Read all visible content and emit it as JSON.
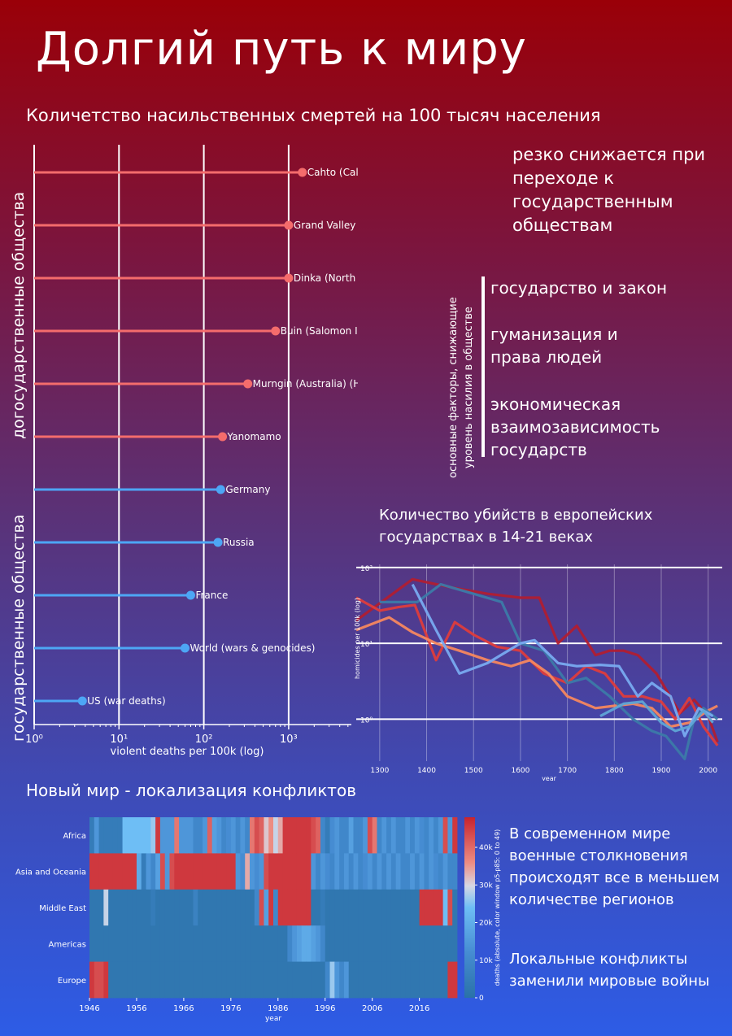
{
  "title": "Долгий путь к миру",
  "section1": {
    "heading": "Количетство насильственных смертей на 100 тысяч населения",
    "label_prestate": "догосударственные общества",
    "label_state": "государственные общества",
    "note": "резко снижается при переходе к государственным обществам"
  },
  "factors": {
    "caption_line1": "основные факторы, снижающие",
    "caption_line2": "уровень насилия в обществе",
    "item1": "государство и закон",
    "item2": "гуманизация и права людей",
    "item3": "экономическая взаимозависимость государств"
  },
  "section2": {
    "heading": "Количество убийств в европейских государствах в 14-21 веках"
  },
  "section3": {
    "heading": "Новый мир - локализация конфликтов",
    "note1": "В современном мире военные столкновения происходят все в меньшем количестве регионов",
    "note2": "Локальные конфликты заменили мировые войны"
  },
  "colors": {
    "prestate": "#f46c6c",
    "state": "#4da6f5"
  },
  "chart_data": [
    {
      "type": "lollipop",
      "xlabel": "violent deaths per 100k (log)",
      "xscale": "log",
      "xlim": [
        0.9,
        5000
      ],
      "xticks": [
        1,
        10,
        100,
        1000
      ],
      "xtick_labels": [
        "10⁰",
        "10¹",
        "10²",
        "10³"
      ],
      "rows": [
        {
          "label": "Cahto (California)",
          "value": 1450,
          "group": "prestate"
        },
        {
          "label": "Grand Valley Dani (New Guinea)",
          "value": 1000,
          "group": "prestate"
        },
        {
          "label": "Dinka (North East Africa)",
          "value": 1000,
          "group": "prestate"
        },
        {
          "label": "Buin (Salomon Islands)",
          "value": 700,
          "group": "prestate"
        },
        {
          "label": "Murngin (Australia) (Hunter-Gatherer)",
          "value": 330,
          "group": "prestate"
        },
        {
          "label": "Yanomamo",
          "value": 166,
          "group": "prestate"
        },
        {
          "label": "Germany",
          "value": 158,
          "group": "state"
        },
        {
          "label": "Russia",
          "value": 147,
          "group": "state"
        },
        {
          "label": "France",
          "value": 70,
          "group": "state"
        },
        {
          "label": "World (wars & genocides)",
          "value": 60,
          "group": "state"
        },
        {
          "label": "US (war deaths)",
          "value": 3.7,
          "group": "state"
        }
      ]
    },
    {
      "type": "line",
      "xlabel": "year",
      "ylabel": "homicides per 100k (log)",
      "yscale": "log",
      "xlim": [
        1250,
        2030
      ],
      "ylim": [
        0.28,
        110
      ],
      "xticks": [
        1300,
        1400,
        1500,
        1600,
        1700,
        1800,
        1900,
        2000
      ],
      "yticks": [
        1,
        10,
        100
      ],
      "ytick_labels": [
        "10⁰",
        "10¹",
        "10²"
      ],
      "series": [
        {
          "color": "#b01e32",
          "points": [
            [
              1250,
              20
            ],
            [
              1370,
              70
            ],
            [
              1450,
              55
            ],
            [
              1530,
              45
            ],
            [
              1600,
              40
            ],
            [
              1640,
              40
            ],
            [
              1680,
              10
            ],
            [
              1720,
              17
            ],
            [
              1760,
              7
            ],
            [
              1790,
              8
            ],
            [
              1820,
              8
            ],
            [
              1850,
              7
            ],
            [
              1890,
              4
            ],
            [
              1940,
              1.2
            ],
            [
              1970,
              1.8
            ],
            [
              2000,
              1.1
            ],
            [
              2020,
              0.5
            ]
          ]
        },
        {
          "color": "#de3c3c",
          "points": [
            [
              1250,
              40
            ],
            [
              1300,
              27
            ],
            [
              1340,
              30
            ],
            [
              1375,
              32
            ],
            [
              1420,
              6
            ],
            [
              1460,
              19
            ],
            [
              1500,
              13
            ],
            [
              1550,
              9
            ],
            [
              1600,
              8
            ],
            [
              1650,
              4
            ],
            [
              1700,
              3
            ],
            [
              1740,
              5
            ],
            [
              1780,
              4
            ],
            [
              1820,
              2
            ],
            [
              1860,
              2
            ],
            [
              1900,
              1.7
            ],
            [
              1930,
              1
            ],
            [
              1960,
              1.9
            ],
            [
              1990,
              0.8
            ],
            [
              2020,
              0.45
            ]
          ]
        },
        {
          "color": "#f5875f",
          "points": [
            [
              1250,
              15
            ],
            [
              1320,
              22
            ],
            [
              1370,
              14
            ],
            [
              1420,
              10
            ],
            [
              1470,
              8
            ],
            [
              1530,
              6
            ],
            [
              1580,
              5
            ],
            [
              1620,
              6
            ],
            [
              1660,
              4
            ],
            [
              1700,
              2
            ],
            [
              1760,
              1.4
            ],
            [
              1800,
              1.5
            ],
            [
              1840,
              1.6
            ],
            [
              1880,
              1.4
            ],
            [
              1920,
              0.8
            ],
            [
              1960,
              0.9
            ],
            [
              2000,
              1.3
            ],
            [
              2020,
              1.5
            ]
          ]
        },
        {
          "color": "#3c7aa8",
          "points": [
            [
              1300,
              35
            ],
            [
              1380,
              35
            ],
            [
              1430,
              60
            ],
            [
              1500,
              45
            ],
            [
              1560,
              35
            ],
            [
              1600,
              10
            ],
            [
              1650,
              8
            ],
            [
              1700,
              3
            ],
            [
              1740,
              3.5
            ],
            [
              1790,
              2
            ],
            [
              1840,
              1
            ],
            [
              1880,
              0.7
            ],
            [
              1910,
              0.6
            ],
            [
              1950,
              0.3
            ],
            [
              1970,
              1
            ],
            [
              1990,
              1.4
            ],
            [
              2020,
              1
            ]
          ]
        },
        {
          "color": "#78aaf0",
          "points": [
            [
              1370,
              60
            ],
            [
              1420,
              15
            ],
            [
              1470,
              4
            ],
            [
              1530,
              5.5
            ],
            [
              1600,
              10
            ],
            [
              1630,
              11
            ],
            [
              1680,
              5.5
            ],
            [
              1720,
              5
            ],
            [
              1770,
              5.2
            ],
            [
              1810,
              5
            ],
            [
              1850,
              2
            ],
            [
              1880,
              3
            ],
            [
              1920,
              2
            ],
            [
              1950,
              0.6
            ],
            [
              1980,
              1.4
            ],
            [
              2010,
              1.1
            ]
          ]
        },
        {
          "color": "#5fa5d6",
          "points": [
            [
              1770,
              1.1
            ],
            [
              1820,
              1.6
            ],
            [
              1860,
              1.7
            ],
            [
              1900,
              0.9
            ],
            [
              1930,
              0.7
            ],
            [
              1960,
              0.8
            ],
            [
              1990,
              1.3
            ],
            [
              2010,
              0.9
            ]
          ]
        }
      ]
    },
    {
      "type": "heatmap",
      "xlabel": "year",
      "colorbar_label": "deaths (absolute, color window p5-p85: 0 to 49)",
      "colorbar_ticks": [
        "0",
        "10k",
        "20k",
        "30k",
        "40k"
      ],
      "rows": [
        "Africa",
        "Asia and Oceania",
        "Middle East",
        "Americas",
        "Europe"
      ],
      "xtick_labels": [
        "1946",
        "1956",
        "1966",
        "1976",
        "1986",
        "1996",
        "2006",
        "2016"
      ],
      "years_start": 1946,
      "years_end": 2023,
      "intensity": {
        "Africa": [
          0.1,
          0.3,
          0.1,
          0.1,
          0.1,
          0.1,
          0.1,
          0.5,
          0.5,
          0.5,
          0.5,
          0.5,
          0.5,
          0.55,
          0.95,
          0.3,
          0.3,
          0.3,
          0.8,
          0.3,
          0.3,
          0.3,
          0.2,
          0.2,
          0.3,
          0.85,
          0.35,
          0.3,
          0.2,
          0.25,
          0.3,
          0.2,
          0.3,
          0.2,
          0.8,
          0.9,
          0.85,
          0.65,
          0.75,
          0.6,
          0.7,
          0.95,
          0.95,
          0.95,
          0.95,
          0.95,
          0.95,
          0.9,
          0.85,
          0.2,
          0.1,
          0.25,
          0.3,
          0.2,
          0.2,
          0.35,
          0.2,
          0.2,
          0.3,
          0.9,
          0.8,
          0.2,
          0.3,
          0.2,
          0.3,
          0.2,
          0.2,
          0.3,
          0.2,
          0.3,
          0.25,
          0.2,
          0.3,
          0.2,
          0.3,
          0.9,
          0.3,
          0.95
        ],
        "Asia and Oceania": [
          0.95,
          0.95,
          0.95,
          0.95,
          0.95,
          0.95,
          0.95,
          0.95,
          0.95,
          0.95,
          0.4,
          0.1,
          0.3,
          0.2,
          0.35,
          0.9,
          0.3,
          0.9,
          0.95,
          0.95,
          0.95,
          0.95,
          0.95,
          0.95,
          0.95,
          0.95,
          0.95,
          0.95,
          0.95,
          0.95,
          0.95,
          0.3,
          0.25,
          0.7,
          0.3,
          0.25,
          0.3,
          0.9,
          0.95,
          0.95,
          0.95,
          0.95,
          0.95,
          0.95,
          0.95,
          0.95,
          0.95,
          0.3,
          0.2,
          0.3,
          0.25,
          0.2,
          0.3,
          0.2,
          0.3,
          0.2,
          0.3,
          0.2,
          0.25,
          0.3,
          0.2,
          0.3,
          0.2,
          0.3,
          0.2,
          0.3,
          0.2,
          0.2,
          0.3,
          0.2,
          0.3,
          0.2,
          0.3,
          0.25,
          0.2,
          0.3,
          0.2,
          0.2
        ],
        "Middle East": [
          0.05,
          0.05,
          0.05,
          0.6,
          0.05,
          0.05,
          0.05,
          0.05,
          0.05,
          0.05,
          0.05,
          0.05,
          0.05,
          0.1,
          0.05,
          0.05,
          0.05,
          0.05,
          0.05,
          0.05,
          0.05,
          0.05,
          0.15,
          0.05,
          0.05,
          0.05,
          0.05,
          0.05,
          0.05,
          0.05,
          0.05,
          0.05,
          0.05,
          0.05,
          0.05,
          0.2,
          0.9,
          0.35,
          0.95,
          0.2,
          0.95,
          0.95,
          0.95,
          0.95,
          0.95,
          0.95,
          0.95,
          0.05,
          0.05,
          0.1,
          0.05,
          0.05,
          0.05,
          0.05,
          0.05,
          0.05,
          0.05,
          0.05,
          0.05,
          0.05,
          0.05,
          0.05,
          0.05,
          0.05,
          0.05,
          0.05,
          0.05,
          0.05,
          0.05,
          0.05,
          0.95,
          0.95,
          0.95,
          0.95,
          0.95,
          0.5,
          0.9,
          0.05
        ],
        "Americas": [
          0.05,
          0.05,
          0.05,
          0.05,
          0.05,
          0.05,
          0.05,
          0.05,
          0.05,
          0.05,
          0.05,
          0.05,
          0.05,
          0.05,
          0.05,
          0.05,
          0.05,
          0.05,
          0.05,
          0.05,
          0.05,
          0.05,
          0.05,
          0.05,
          0.05,
          0.05,
          0.05,
          0.05,
          0.05,
          0.05,
          0.05,
          0.05,
          0.05,
          0.05,
          0.05,
          0.05,
          0.05,
          0.05,
          0.05,
          0.05,
          0.05,
          0.05,
          0.2,
          0.3,
          0.35,
          0.4,
          0.4,
          0.35,
          0.3,
          0.2,
          0.05,
          0.05,
          0.05,
          0.05,
          0.05,
          0.05,
          0.05,
          0.05,
          0.05,
          0.05,
          0.05,
          0.05,
          0.05,
          0.05,
          0.05,
          0.05,
          0.05,
          0.05,
          0.05,
          0.05,
          0.05,
          0.05,
          0.05,
          0.05,
          0.05,
          0.05,
          0.05,
          0.05
        ],
        "Europe": [
          0.95,
          0.9,
          0.9,
          0.95,
          0.05,
          0.05,
          0.05,
          0.05,
          0.05,
          0.05,
          0.05,
          0.05,
          0.05,
          0.05,
          0.05,
          0.05,
          0.05,
          0.05,
          0.05,
          0.05,
          0.05,
          0.05,
          0.05,
          0.05,
          0.05,
          0.05,
          0.05,
          0.05,
          0.05,
          0.05,
          0.05,
          0.05,
          0.05,
          0.05,
          0.05,
          0.05,
          0.05,
          0.05,
          0.05,
          0.05,
          0.05,
          0.05,
          0.05,
          0.05,
          0.05,
          0.05,
          0.05,
          0.05,
          0.05,
          0.05,
          0.2,
          0.55,
          0.3,
          0.2,
          0.3,
          0.05,
          0.05,
          0.05,
          0.05,
          0.05,
          0.05,
          0.05,
          0.05,
          0.05,
          0.05,
          0.05,
          0.05,
          0.05,
          0.05,
          0.05,
          0.05,
          0.05,
          0.05,
          0.05,
          0.05,
          0.05,
          0.95,
          0.95
        ]
      }
    }
  ]
}
